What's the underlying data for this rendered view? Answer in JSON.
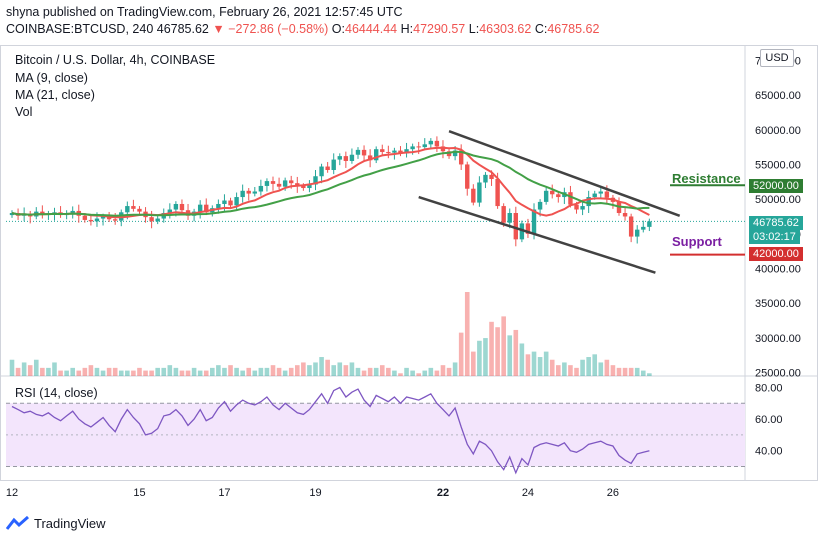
{
  "header": {
    "published": "shyna published on TradingView.com, February 26, 2021 12:57:45 UTC",
    "symbol": "COINBASE:BTCUSD, 240",
    "last": "46785.62",
    "change": "−272.86 (−0.58%)",
    "o_label": "O:",
    "o_val": "46444.44",
    "h_label": "H:",
    "h_val": "47290.57",
    "l_label": "L:",
    "l_val": "46303.62",
    "c_label": "C:",
    "c_val": "46785.62"
  },
  "legend": {
    "title": "Bitcoin / U.S. Dollar, 4h, COINBASE",
    "ma9": "MA (9, close)",
    "ma21": "MA (21, close)",
    "vol": "Vol",
    "rsi": "RSI (14, close)"
  },
  "currency_button": "USD",
  "annotations": {
    "resistance": "Resistance",
    "support": "Support",
    "resistance_color": "#2e7d32",
    "support_color": "#7b1fa2"
  },
  "price_tags": {
    "resistance_price": "52000.00",
    "current_price": "46785.62",
    "countdown": "03:02:17",
    "support_price": "42000.00"
  },
  "footer": {
    "brand": "TradingView"
  },
  "colors": {
    "up": "#26a69a",
    "down": "#ef5350",
    "ma9": "#ef5350",
    "ma21": "#43a047",
    "rsi_line": "#7e57c2",
    "rsi_band": "#f3e5fc",
    "channel": "#424242"
  },
  "chart_data": {
    "type": "candlestick",
    "title": "Bitcoin / U.S. Dollar, 4h, COINBASE",
    "price_axis": {
      "labels": [
        "70000.00",
        "65000.00",
        "60000.00",
        "55000.00",
        "50000.00",
        "45000.00",
        "40000.00",
        "35000.00",
        "30000.00",
        "25000.00"
      ],
      "values": [
        70000,
        65000,
        60000,
        55000,
        50000,
        45000,
        40000,
        35000,
        30000,
        25000
      ],
      "range": [
        24500,
        71500
      ]
    },
    "time_axis": {
      "labels": [
        "12",
        "15",
        "17",
        "19",
        "22",
        "24",
        "26"
      ],
      "bars": [
        0,
        21,
        35,
        50,
        71,
        85,
        99
      ]
    },
    "close": [
      48000,
      47600,
      47900,
      47500,
      48200,
      47800,
      47900,
      48100,
      47700,
      48000,
      48300,
      47600,
      47000,
      46800,
      47200,
      47500,
      47100,
      46900,
      48100,
      49000,
      48600,
      48200,
      47400,
      46800,
      47200,
      48000,
      48500,
      49300,
      48400,
      47600,
      48200,
      49200,
      48100,
      48700,
      49300,
      49800,
      49100,
      50300,
      51200,
      50800,
      51100,
      51900,
      52600,
      52200,
      51800,
      52700,
      52300,
      51900,
      51600,
      52100,
      53300,
      54700,
      54200,
      55700,
      56200,
      55500,
      56400,
      57100,
      56300,
      55600,
      57200,
      56800,
      56700,
      57000,
      56600,
      57200,
      57600,
      57500,
      57900,
      58400,
      57600,
      56900,
      56200,
      57000,
      55000,
      51500,
      49500,
      52400,
      53500,
      52900,
      49000,
      46600,
      48000,
      44200,
      46500,
      45000,
      48500,
      49600,
      51200,
      50700,
      50300,
      51000,
      49200,
      48500,
      49000,
      50300,
      50800,
      51100,
      50200,
      49600,
      48000,
      47500,
      44600,
      45600,
      46000,
      46785
    ],
    "ma": [
      {
        "name": "MA (9, close)",
        "period": 9,
        "color": "#ef5350"
      },
      {
        "name": "MA (21, close)",
        "period": 21,
        "color": "#43a047"
      }
    ],
    "volume": [
      6,
      3,
      5,
      4,
      6,
      3,
      3,
      5,
      2,
      2,
      3,
      2,
      3,
      4,
      3,
      2,
      3,
      3,
      2,
      2,
      2,
      3,
      2,
      2,
      3,
      3,
      4,
      3,
      2,
      2,
      3,
      2,
      2,
      3,
      4,
      3,
      4,
      3,
      2,
      3,
      2,
      3,
      3,
      4,
      3,
      2,
      3,
      4,
      5,
      4,
      5,
      7,
      6,
      4,
      5,
      4,
      5,
      3,
      2,
      3,
      3,
      4,
      3,
      2,
      1,
      3,
      2,
      1,
      2,
      3,
      2,
      4,
      3,
      5,
      16,
      31,
      9,
      13,
      14,
      20,
      18,
      22,
      15,
      17,
      12,
      8,
      9,
      7,
      9,
      6,
      4,
      5,
      4,
      3,
      6,
      7,
      8,
      5,
      6,
      4,
      3,
      3,
      3,
      3,
      2,
      1
    ],
    "rsi_axis": {
      "labels": [
        "80.00",
        "60.00",
        "40.00"
      ],
      "values": [
        80,
        60,
        40
      ],
      "range": [
        24,
        86
      ]
    },
    "rsi": [
      68,
      66,
      64,
      65,
      63,
      62,
      64,
      61,
      59,
      62,
      65,
      60,
      57,
      55,
      58,
      61,
      56,
      52,
      60,
      66,
      61,
      57,
      50,
      51,
      54,
      62,
      63,
      66,
      62,
      56,
      60,
      66,
      59,
      61,
      67,
      71,
      65,
      69,
      72,
      70,
      69,
      71,
      74,
      69,
      66,
      70,
      67,
      64,
      63,
      66,
      71,
      76,
      70,
      78,
      80,
      74,
      77,
      79,
      72,
      68,
      75,
      73,
      71,
      74,
      70,
      74,
      73,
      72,
      74,
      76,
      70,
      66,
      62,
      67,
      55,
      44,
      38,
      46,
      44,
      40,
      33,
      28,
      36,
      26,
      35,
      31,
      42,
      44,
      45,
      44,
      43,
      45,
      40,
      39,
      41,
      44,
      45,
      46,
      44,
      43,
      37,
      34,
      32,
      38,
      39,
      40
    ],
    "channel": {
      "upper": [
        [
          72,
          59800
        ],
        [
          110,
          47600
        ]
      ],
      "lower": [
        [
          67,
          50300
        ],
        [
          106,
          39400
        ]
      ]
    },
    "levels": {
      "resistance": 52000,
      "support": 42000,
      "last": 46785.62
    }
  }
}
